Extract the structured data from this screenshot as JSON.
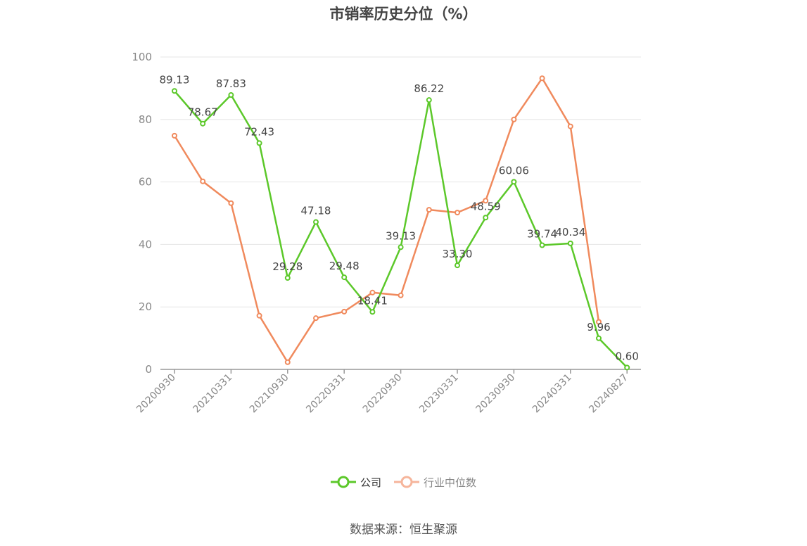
{
  "title": "市销率历史分位（%）",
  "source": "数据来源：恒生聚源",
  "colors": {
    "company": "#5cc82a",
    "industry": "#f08a5d",
    "industry_legend": "#f6b59b",
    "grid": "#e6e6e6",
    "axis": "#999999",
    "tick_text": "#888888",
    "label_text": "#444444"
  },
  "chart_data": {
    "type": "line",
    "title": "市销率历史分位（%）",
    "xlabel": "",
    "ylabel": "",
    "ylim": [
      0,
      100
    ],
    "yticks": [
      0,
      20,
      40,
      60,
      80,
      100
    ],
    "grid": true,
    "legend_position": "bottom",
    "x": [
      "20200930",
      "20201231",
      "20210331",
      "20210630",
      "20210930",
      "20211231",
      "20220331",
      "20220630",
      "20220930",
      "20221231",
      "20230331",
      "20230630",
      "20230930",
      "20231231",
      "20240331",
      "20240630",
      "20240827"
    ],
    "x_tick_labels": [
      "20200930",
      "20210331",
      "20210930",
      "20220331",
      "20220930",
      "20230331",
      "20230930",
      "20240331",
      "20240827"
    ],
    "series": [
      {
        "name": "公司",
        "values": [
          89.13,
          78.67,
          87.83,
          72.43,
          29.28,
          47.18,
          29.48,
          18.41,
          39.13,
          86.22,
          33.3,
          48.59,
          60.06,
          39.74,
          40.34,
          9.96,
          0.6
        ],
        "labels": [
          "89.13",
          "78.67",
          "87.83",
          "72.43",
          "29.28",
          "47.18",
          "29.48",
          "18.41",
          "39.13",
          "86.22",
          "33.30",
          "48.59",
          "60.06",
          "39.74",
          "40.34",
          "9.96",
          "0.60"
        ]
      },
      {
        "name": "行业中位数",
        "values": [
          74.8,
          60.2,
          53.2,
          17.2,
          2.3,
          16.4,
          18.5,
          24.6,
          23.7,
          51.1,
          50.2,
          54.0,
          80.0,
          93.2,
          77.8,
          15.2,
          null
        ]
      }
    ]
  },
  "legend": [
    {
      "name": "公司"
    },
    {
      "name": "行业中位数"
    }
  ]
}
